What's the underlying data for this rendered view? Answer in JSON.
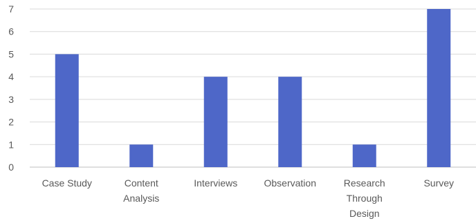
{
  "chart_data": {
    "type": "bar",
    "title": "",
    "xlabel": "",
    "ylabel": "",
    "categories": [
      "Case Study",
      "Content Analysis",
      "Interviews",
      "Observation",
      "Research Through Design",
      "Survey"
    ],
    "category_lines": [
      [
        "Case Study"
      ],
      [
        "Content",
        "Analysis"
      ],
      [
        "Interviews"
      ],
      [
        "Observation"
      ],
      [
        "Research",
        "Through",
        "Design"
      ],
      [
        "Survey"
      ]
    ],
    "values": [
      5,
      1,
      4,
      4,
      1,
      7
    ],
    "ylim": [
      0,
      7
    ],
    "yticks": [
      "0",
      "1",
      "2",
      "3",
      "4",
      "5",
      "6",
      "7"
    ],
    "grid": true,
    "legend": "none",
    "colors": {
      "bar": "#4e67c8",
      "gridline": "#d9d9d9",
      "axis": "#bfbfbf",
      "text": "#595959"
    }
  }
}
